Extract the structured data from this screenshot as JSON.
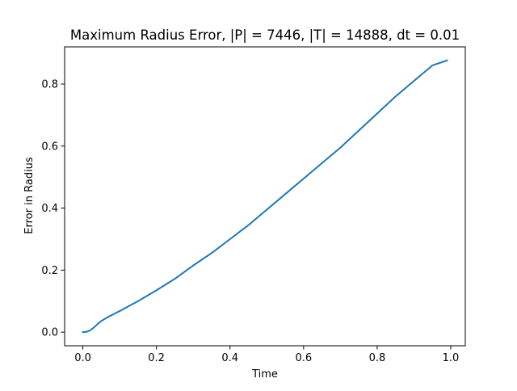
{
  "chart_data": {
    "type": "line",
    "title": "Maximum Radius Error, |P| = 7446, |T| = 14888, dt = 0.01",
    "xlabel": "Time",
    "ylabel": "Error in Radius",
    "xlim": [
      -0.0495,
      1.0395
    ],
    "ylim": [
      -0.0438,
      0.9198
    ],
    "xticks": [
      0.0,
      0.2,
      0.4,
      0.6,
      0.8,
      1.0
    ],
    "xtick_labels": [
      "0.0",
      "0.2",
      "0.4",
      "0.6",
      "0.8",
      "1.0"
    ],
    "yticks": [
      0.0,
      0.2,
      0.4,
      0.6,
      0.8
    ],
    "ytick_labels": [
      "0.0",
      "0.2",
      "0.4",
      "0.6",
      "0.8"
    ],
    "grid": false,
    "legend": "none",
    "series": [
      {
        "color": "#1f77b4",
        "x": [
          0.0,
          0.01,
          0.02,
          0.03,
          0.04,
          0.05,
          0.07,
          0.1,
          0.15,
          0.2,
          0.25,
          0.3,
          0.35,
          0.4,
          0.45,
          0.5,
          0.55,
          0.6,
          0.65,
          0.7,
          0.75,
          0.8,
          0.85,
          0.9,
          0.95,
          0.99
        ],
        "y": [
          0.0,
          0.001,
          0.006,
          0.015,
          0.026,
          0.036,
          0.05,
          0.068,
          0.1,
          0.135,
          0.172,
          0.215,
          0.255,
          0.3,
          0.345,
          0.395,
          0.445,
          0.495,
          0.545,
          0.595,
          0.65,
          0.705,
          0.76,
          0.81,
          0.86,
          0.876
        ]
      }
    ]
  }
}
